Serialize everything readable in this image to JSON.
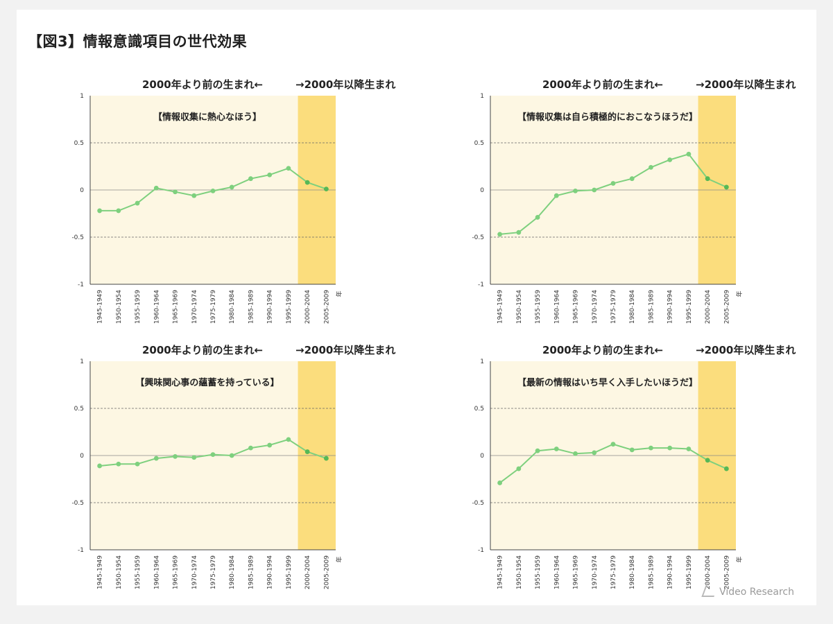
{
  "figure_title": "【図3】情報意識項目の世代効果",
  "logo_text": "Video Research",
  "colors": {
    "bg_before": "#fdf7e3",
    "bg_after": "#fbdd7d",
    "line": "#7ed07e",
    "marker_before": "#7ed07e",
    "marker_after": "#56b856",
    "axis": "#444444",
    "grid": "#666666"
  },
  "chart_data": [
    {
      "type": "line",
      "caption_before": "2000年より前の生まれ←",
      "caption_after": "→2000年以降生まれ",
      "title": "【情報収集に熱心なほう】",
      "x_unit": "年",
      "categories": [
        "1945-1949",
        "1950-1954",
        "1955-1959",
        "1960-1964",
        "1965-1969",
        "1970-1974",
        "1975-1979",
        "1980-1984",
        "1985-1989",
        "1990-1994",
        "1995-1999",
        "2000-2004",
        "2005-2009"
      ],
      "values": [
        -0.22,
        -0.22,
        -0.14,
        0.02,
        -0.02,
        -0.06,
        -0.01,
        0.03,
        0.12,
        0.16,
        0.23,
        0.08,
        0.01
      ],
      "yticks": [
        "1",
        "0.5",
        "0",
        "-0.5",
        "-1"
      ],
      "ylim": [
        -1,
        1
      ],
      "highlight_from_index": 11,
      "grid": true
    },
    {
      "type": "line",
      "caption_before": "2000年より前の生まれ←",
      "caption_after": "→2000年以降生まれ",
      "title": "【情報収集は自ら積極的におこなうほうだ】",
      "x_unit": "年",
      "categories": [
        "1945-1949",
        "1950-1954",
        "1955-1959",
        "1960-1964",
        "1965-1969",
        "1970-1974",
        "1975-1979",
        "1980-1984",
        "1985-1989",
        "1990-1994",
        "1995-1999",
        "2000-2004",
        "2005-2009"
      ],
      "values": [
        -0.47,
        -0.45,
        -0.29,
        -0.06,
        -0.01,
        0.0,
        0.07,
        0.12,
        0.24,
        0.32,
        0.38,
        0.12,
        0.03
      ],
      "yticks": [
        "1",
        "0.5",
        "0",
        "-0.5",
        "-1"
      ],
      "ylim": [
        -1,
        1
      ],
      "highlight_from_index": 11,
      "grid": true
    },
    {
      "type": "line",
      "caption_before": "2000年より前の生まれ←",
      "caption_after": "→2000年以降生まれ",
      "title": "【興味関心事の蘊蓄を持っている】",
      "x_unit": "年",
      "categories": [
        "1945-1949",
        "1950-1954",
        "1955-1959",
        "1960-1964",
        "1965-1969",
        "1970-1974",
        "1975-1979",
        "1980-1984",
        "1985-1989",
        "1990-1994",
        "1995-1999",
        "2000-2004",
        "2005-2009"
      ],
      "values": [
        -0.11,
        -0.09,
        -0.09,
        -0.03,
        -0.01,
        -0.02,
        0.01,
        0.0,
        0.08,
        0.11,
        0.17,
        0.04,
        -0.03
      ],
      "yticks": [
        "1",
        "0.5",
        "0",
        "-0.5",
        "-1"
      ],
      "ylim": [
        -1,
        1
      ],
      "highlight_from_index": 11,
      "grid": true
    },
    {
      "type": "line",
      "caption_before": "2000年より前の生まれ←",
      "caption_after": "→2000年以降生まれ",
      "title": "【最新の情報はいち早く入手したいほうだ】",
      "x_unit": "年",
      "categories": [
        "1945-1949",
        "1950-1954",
        "1955-1959",
        "1960-1964",
        "1965-1969",
        "1970-1974",
        "1975-1979",
        "1980-1984",
        "1985-1989",
        "1990-1994",
        "1995-1999",
        "2000-2004",
        "2005-2009"
      ],
      "values": [
        -0.29,
        -0.14,
        0.05,
        0.07,
        0.02,
        0.03,
        0.12,
        0.06,
        0.08,
        0.08,
        0.07,
        -0.05,
        -0.14
      ],
      "yticks": [
        "1",
        "0.5",
        "0",
        "-0.5",
        "-1"
      ],
      "ylim": [
        -1,
        1
      ],
      "highlight_from_index": 11,
      "grid": true
    }
  ]
}
